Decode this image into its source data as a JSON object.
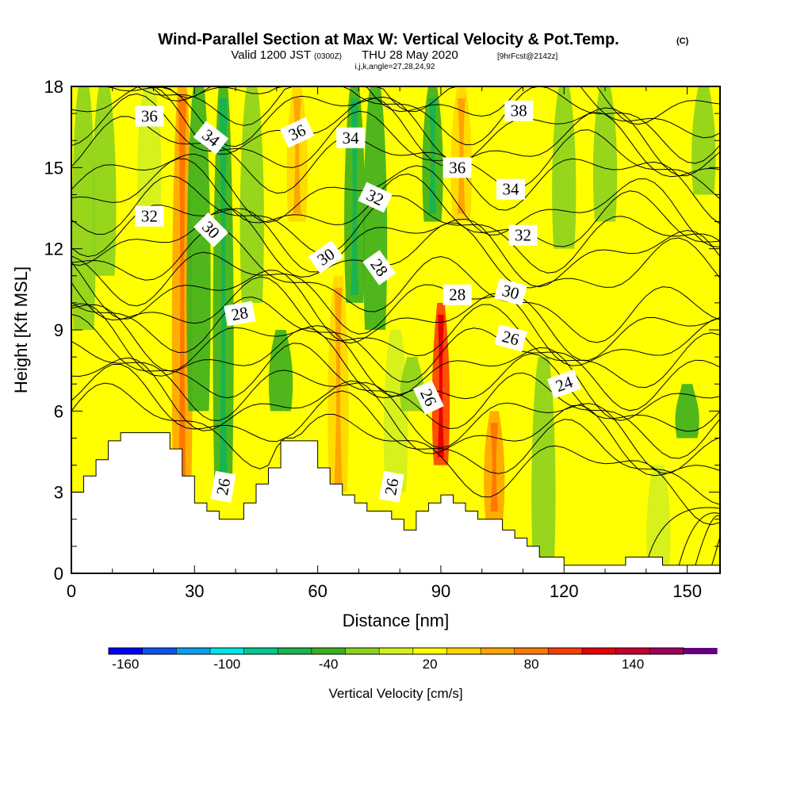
{
  "title": {
    "main": "Wind-Parallel Section at Max W: Vertical Velocity & Pot.Temp.",
    "copyright": "(C)",
    "valid_prefix": "Valid 1200 JST",
    "valid_utc": "(0300Z)",
    "valid_date": "THU 28 May 2020",
    "forecast": "[9hrFcst@2142z]",
    "indices": "i,j,k,angle=27,28,24,92"
  },
  "chart_data": {
    "type": "heatmap",
    "xlabel": "Distance [nm]",
    "ylabel": "Height [Kft MSL]",
    "xlim": [
      0,
      158
    ],
    "ylim": [
      0,
      18
    ],
    "x_ticks": [
      0,
      30,
      60,
      90,
      120,
      150
    ],
    "y_ticks": [
      0,
      3,
      6,
      9,
      12,
      15,
      18
    ],
    "colorbar": {
      "title": "Vertical Velocity [cm/s]",
      "range": [
        -170,
        170
      ],
      "step": 20,
      "tick_values": [
        -160,
        -100,
        -40,
        20,
        80,
        140
      ],
      "colors": [
        "#0000ff",
        "#0a55f0",
        "#0aa0ee",
        "#00e6e6",
        "#00c890",
        "#18b450",
        "#3caf1e",
        "#8cd21e",
        "#d2f01e",
        "#ffff00",
        "#ffd700",
        "#ffa500",
        "#ff7800",
        "#ff3c00",
        "#e60000",
        "#c8002d",
        "#a0005a",
        "#64007d"
      ]
    },
    "velocity_field": [
      {
        "x": 3,
        "y_range": [
          9,
          18
        ],
        "w": -30
      },
      {
        "x": 8,
        "y_range": [
          11,
          18
        ],
        "w": -15
      },
      {
        "x": 19,
        "y_range": [
          13,
          18
        ],
        "w": 5
      },
      {
        "x": 27,
        "y_range": [
          2.5,
          18
        ],
        "w": 50
      },
      {
        "x": 31,
        "y_range": [
          6,
          18
        ],
        "w": -35
      },
      {
        "x": 37,
        "y_range": [
          3,
          18
        ],
        "w": -40
      },
      {
        "x": 44,
        "y_range": [
          10,
          18
        ],
        "w": -15
      },
      {
        "x": 51,
        "y_range": [
          6,
          9
        ],
        "w": -35
      },
      {
        "x": 55,
        "y_range": [
          13,
          18
        ],
        "w": 45
      },
      {
        "x": 57,
        "y_range": [
          6,
          12
        ],
        "w": 20
      },
      {
        "x": 65,
        "y_range": [
          3,
          11
        ],
        "w": 45
      },
      {
        "x": 69,
        "y_range": [
          10,
          18
        ],
        "w": -40
      },
      {
        "x": 74,
        "y_range": [
          9,
          18
        ],
        "w": -35
      },
      {
        "x": 79,
        "y_range": [
          3,
          9
        ],
        "w": -10
      },
      {
        "x": 83,
        "y_range": [
          6,
          8
        ],
        "w": -25
      },
      {
        "x": 88,
        "y_range": [
          13,
          18
        ],
        "w": -40
      },
      {
        "x": 90,
        "y_range": [
          4,
          10
        ],
        "w": 100
      },
      {
        "x": 95,
        "y_range": [
          13,
          18
        ],
        "w": 40
      },
      {
        "x": 103,
        "y_range": [
          2,
          6
        ],
        "w": 55
      },
      {
        "x": 115,
        "y_range": [
          0,
          8
        ],
        "w": -15
      },
      {
        "x": 120,
        "y_range": [
          12,
          18
        ],
        "w": -15
      },
      {
        "x": 130,
        "y_range": [
          13,
          18
        ],
        "w": -25
      },
      {
        "x": 143,
        "y_range": [
          0,
          4
        ],
        "w": -5
      },
      {
        "x": 150,
        "y_range": [
          5,
          7
        ],
        "w": -35
      },
      {
        "x": 154,
        "y_range": [
          14,
          18
        ],
        "w": -20
      }
    ],
    "terrain_x": [
      0,
      3,
      6,
      9,
      12,
      15,
      18,
      21,
      24,
      27,
      30,
      33,
      36,
      39,
      42,
      45,
      48,
      51,
      54,
      57,
      60,
      63,
      66,
      69,
      72,
      75,
      78,
      81,
      84,
      87,
      90,
      93,
      96,
      99,
      102,
      105,
      108,
      111,
      114,
      117,
      120,
      123,
      126,
      129,
      132,
      135,
      138,
      141,
      144,
      147,
      150,
      153,
      158
    ],
    "terrain_y": [
      3.0,
      3.6,
      4.2,
      4.9,
      5.2,
      5.2,
      5.2,
      5.2,
      4.6,
      3.6,
      2.6,
      2.3,
      2.0,
      2.0,
      2.6,
      3.3,
      3.9,
      4.9,
      4.9,
      4.9,
      3.9,
      3.3,
      2.9,
      2.6,
      2.3,
      2.3,
      2.0,
      1.6,
      2.3,
      2.6,
      2.9,
      2.6,
      2.3,
      2.0,
      2.0,
      1.6,
      1.3,
      1.0,
      0.6,
      0.6,
      0.3,
      0.3,
      0.3,
      0.3,
      0.3,
      0.6,
      0.6,
      0.6,
      0.3,
      0.3,
      0.3,
      0.3,
      0.3
    ],
    "contour_labels": [
      {
        "text": "36",
        "x": 19,
        "y": 16.9,
        "angle": 0
      },
      {
        "text": "34",
        "x": 34,
        "y": 16.1,
        "angle": 38
      },
      {
        "text": "36",
        "x": 55,
        "y": 16.3,
        "angle": -25
      },
      {
        "text": "34",
        "x": 68,
        "y": 16.1,
        "angle": 0
      },
      {
        "text": "36",
        "x": 94,
        "y": 15.0,
        "angle": 0
      },
      {
        "text": "38",
        "x": 109,
        "y": 17.1,
        "angle": 0
      },
      {
        "text": "32",
        "x": 19,
        "y": 13.2,
        "angle": 0
      },
      {
        "text": "30",
        "x": 34,
        "y": 12.7,
        "angle": 45
      },
      {
        "text": "32",
        "x": 74,
        "y": 13.9,
        "angle": 25
      },
      {
        "text": "34",
        "x": 107,
        "y": 14.2,
        "angle": 0
      },
      {
        "text": "32",
        "x": 110,
        "y": 12.5,
        "angle": 0
      },
      {
        "text": "30",
        "x": 62,
        "y": 11.7,
        "angle": -35
      },
      {
        "text": "28",
        "x": 75,
        "y": 11.3,
        "angle": 55
      },
      {
        "text": "28",
        "x": 94,
        "y": 10.3,
        "angle": 0
      },
      {
        "text": "30",
        "x": 107,
        "y": 10.4,
        "angle": 15
      },
      {
        "text": "28",
        "x": 41,
        "y": 9.6,
        "angle": -10
      },
      {
        "text": "26",
        "x": 107,
        "y": 8.7,
        "angle": 15
      },
      {
        "text": "26",
        "x": 87,
        "y": 6.5,
        "angle": 65
      },
      {
        "text": "24",
        "x": 120,
        "y": 7.0,
        "angle": -20
      },
      {
        "text": "26",
        "x": 37,
        "y": 3.2,
        "angle": -80
      },
      {
        "text": "26",
        "x": 78,
        "y": 3.2,
        "angle": -80
      }
    ],
    "grid": false
  }
}
